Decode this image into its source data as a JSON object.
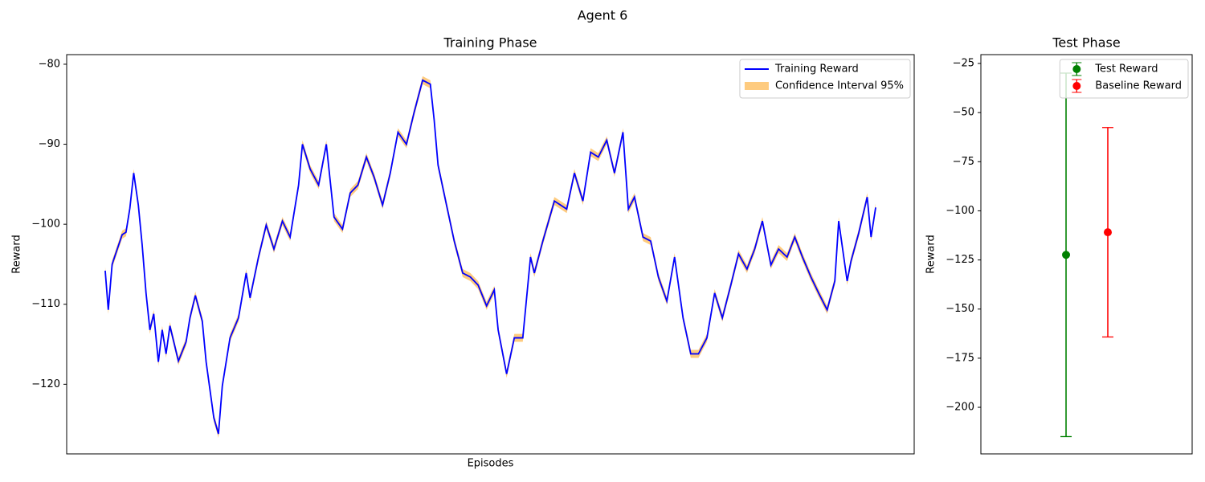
{
  "title": "Agent 6",
  "chart_data": [
    {
      "type": "line",
      "title": "Training Phase",
      "xlabel": "Episodes",
      "ylabel": "Reward",
      "legend": "upper right",
      "xlim": [
        -50,
        1050
      ],
      "ylim": [
        -128.7,
        -78.8
      ],
      "yticks": [
        {
          "value": -80,
          "label": "−80"
        },
        {
          "value": -90,
          "label": "−90"
        },
        {
          "value": -100,
          "label": "−100"
        },
        {
          "value": -110,
          "label": "−110"
        },
        {
          "value": -120,
          "label": "−120"
        }
      ],
      "x": [
        0,
        4,
        9,
        22,
        27,
        32,
        37,
        43,
        48,
        53,
        58,
        63,
        69,
        74,
        79,
        84,
        95,
        105,
        110,
        117,
        126,
        131,
        136,
        141,
        147,
        152,
        162,
        173,
        183,
        188,
        199,
        209,
        219,
        230,
        240,
        251,
        256,
        266,
        277,
        287,
        297,
        308,
        318,
        328,
        339,
        349,
        360,
        370,
        380,
        391,
        401,
        412,
        422,
        427,
        432,
        443,
        453,
        464,
        474,
        484,
        495,
        505,
        510,
        521,
        531,
        542,
        552,
        557,
        568,
        583,
        599,
        609,
        620,
        630,
        640,
        651,
        661,
        672,
        679,
        687,
        698,
        708,
        718,
        729,
        739,
        750,
        760,
        770,
        781,
        791,
        801,
        812,
        822,
        833,
        843,
        853,
        864,
        874,
        885,
        895,
        905,
        916,
        926,
        937,
        947,
        952,
        963,
        968,
        978,
        989,
        994,
        1000
      ],
      "series": [
        {
          "name": "Training Reward",
          "color": "#0000ff",
          "values": [
            -105.8,
            -110.7,
            -105,
            -101.3,
            -101,
            -98,
            -93.6,
            -97.6,
            -102.6,
            -108.6,
            -113.2,
            -111.2,
            -117.2,
            -113.2,
            -116.2,
            -112.7,
            -117.1,
            -114.7,
            -111.7,
            -108.9,
            -112.1,
            -117.2,
            -120.7,
            -124.2,
            -126.2,
            -120.2,
            -114.2,
            -111.7,
            -106.1,
            -109.2,
            -104.1,
            -100.1,
            -103.1,
            -99.6,
            -101.6,
            -95.1,
            -90,
            -93.1,
            -95.1,
            -90,
            -99.1,
            -100.6,
            -96.1,
            -95.1,
            -91.6,
            -94.1,
            -97.6,
            -93.6,
            -88.5,
            -90,
            -86,
            -82,
            -82.5,
            -87,
            -92.6,
            -97.6,
            -102.1,
            -106.1,
            -106.6,
            -107.6,
            -110.2,
            -108.2,
            -113.2,
            -118.7,
            -114.2,
            -114.2,
            -104.1,
            -106.1,
            -102.1,
            -97.1,
            -98.1,
            -93.6,
            -97.1,
            -91,
            -91.6,
            -89.5,
            -93.6,
            -88.5,
            -98.1,
            -96.6,
            -101.6,
            -102.1,
            -106.6,
            -109.6,
            -104.1,
            -111.7,
            -116.2,
            -116.2,
            -114.2,
            -108.6,
            -111.7,
            -107.6,
            -103.7,
            -105.6,
            -103.1,
            -99.6,
            -105.1,
            -103.1,
            -104.1,
            -101.6,
            -104.1,
            -106.6,
            -108.6,
            -110.7,
            -107.1,
            -99.6,
            -107.1,
            -104.6,
            -101.1,
            -96.6,
            -101.6,
            -97.9
          ]
        }
      ],
      "band": {
        "name": "Confidence Interval 95%",
        "color": "#fecb7f",
        "lower": [
          -106.3,
          -111.2,
          -105.5,
          -101.8,
          -101.5,
          -98.5,
          -94.1,
          -98.1,
          -103.1,
          -109.1,
          -113.7,
          -111.7,
          -117.7,
          -113.7,
          -116.7,
          -113.2,
          -117.6,
          -115.2,
          -112.2,
          -109.4,
          -112.6,
          -117.7,
          -121.2,
          -124.7,
          -126.7,
          -120.7,
          -114.7,
          -112.2,
          -106.6,
          -109.7,
          -104.6,
          -100.6,
          -103.6,
          -100.1,
          -102.1,
          -95.6,
          -90.5,
          -93.6,
          -95.6,
          -90.5,
          -99.6,
          -101.1,
          -96.6,
          -95.6,
          -92.1,
          -94.6,
          -98.1,
          -94.1,
          -89,
          -90.5,
          -86.5,
          -82.5,
          -83,
          -87.5,
          -93.1,
          -98.1,
          -102.6,
          -106.6,
          -107.1,
          -108.1,
          -110.7,
          -108.7,
          -113.7,
          -119.2,
          -114.7,
          -114.7,
          -104.6,
          -106.6,
          -102.6,
          -97.6,
          -98.6,
          -94.1,
          -97.6,
          -91.5,
          -92.1,
          -90,
          -94.1,
          -89,
          -98.6,
          -97.1,
          -102.1,
          -102.6,
          -107.1,
          -110.1,
          -104.6,
          -112.2,
          -116.7,
          -116.7,
          -114.7,
          -109.1,
          -112.2,
          -108.1,
          -104.2,
          -106.1,
          -103.6,
          -100.1,
          -105.6,
          -103.6,
          -104.6,
          -102.1,
          -104.6,
          -107.1,
          -109.1,
          -111.2,
          -107.6,
          -100.1,
          -107.6,
          -105.1,
          -101.6,
          -97.1,
          -102.1,
          -98.4
        ],
        "upper": [
          -105.3,
          -110.2,
          -104.5,
          -100.8,
          -100.5,
          -97.5,
          -93.1,
          -97.1,
          -102.1,
          -108.1,
          -112.7,
          -110.7,
          -116.7,
          -112.7,
          -115.7,
          -112.2,
          -116.6,
          -114.2,
          -111.2,
          -108.4,
          -111.6,
          -116.7,
          -120.2,
          -123.7,
          -125.7,
          -119.7,
          -113.7,
          -111.2,
          -105.6,
          -108.7,
          -103.6,
          -99.6,
          -102.6,
          -99.1,
          -101.1,
          -94.6,
          -89.5,
          -92.6,
          -94.6,
          -89.5,
          -98.6,
          -100.1,
          -95.6,
          -94.6,
          -91.1,
          -93.6,
          -97.1,
          -93.1,
          -88,
          -89.5,
          -85.5,
          -81.5,
          -82,
          -86.5,
          -92.1,
          -97.1,
          -101.6,
          -105.6,
          -106.1,
          -107.1,
          -109.7,
          -107.7,
          -112.7,
          -118.2,
          -113.7,
          -113.7,
          -103.6,
          -105.6,
          -101.6,
          -96.6,
          -97.6,
          -93.1,
          -96.6,
          -90.5,
          -91.1,
          -89,
          -93.1,
          -88,
          -97.6,
          -96.1,
          -101.1,
          -101.6,
          -106.1,
          -109.1,
          -103.6,
          -111.2,
          -115.7,
          -115.7,
          -113.7,
          -108.1,
          -111.2,
          -107.1,
          -103.2,
          -105.1,
          -102.6,
          -99.1,
          -104.6,
          -102.6,
          -103.6,
          -101.1,
          -103.6,
          -106.1,
          -108.1,
          -110.2,
          -106.6,
          -99.1,
          -106.6,
          -104.1,
          -100.6,
          -96.1,
          -101.1,
          -97.4
        ]
      }
    },
    {
      "type": "errorbar",
      "title": "Test Phase",
      "ylabel": "Reward",
      "legend": "upper right",
      "xlim": [
        -2.04,
        3.02
      ],
      "ylim": [
        -223.7,
        -20.5
      ],
      "yticks": [
        {
          "value": -25,
          "label": "−25"
        },
        {
          "value": -50,
          "label": "−50"
        },
        {
          "value": -75,
          "label": "−75"
        },
        {
          "value": -100,
          "label": "−100"
        },
        {
          "value": -125,
          "label": "−125"
        },
        {
          "value": -150,
          "label": "−150"
        },
        {
          "value": -175,
          "label": "−175"
        },
        {
          "value": -200,
          "label": "−200"
        }
      ],
      "series": [
        {
          "name": "Test Reward",
          "color": "#008000",
          "x": 0,
          "value": -122.4,
          "error": 92.5
        },
        {
          "name": "Baseline Reward",
          "color": "#ff0000",
          "x": 1,
          "value": -110.9,
          "error": 53.3
        }
      ]
    }
  ]
}
